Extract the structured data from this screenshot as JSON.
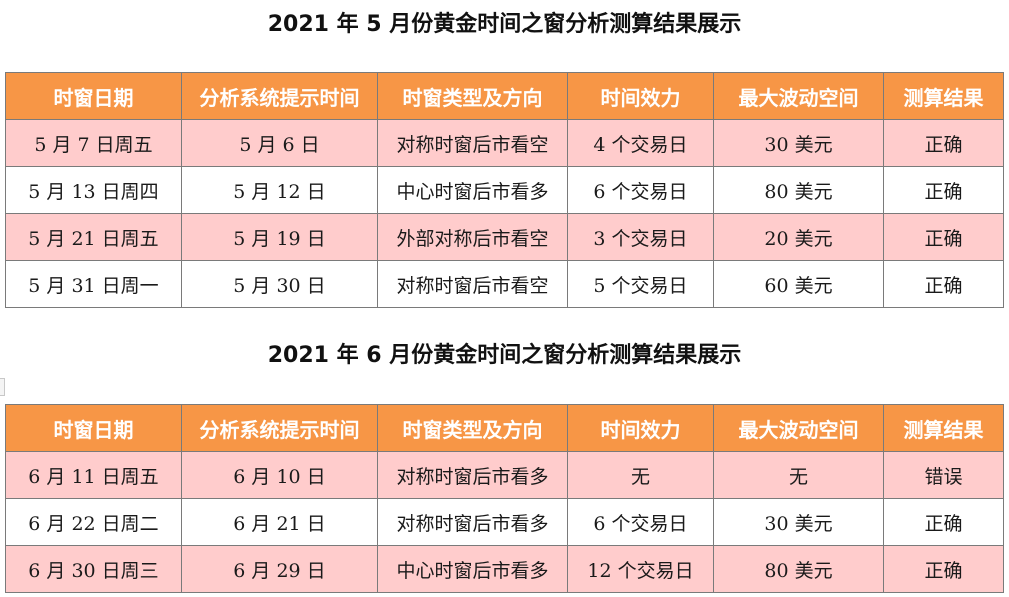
{
  "headers": [
    "时窗日期",
    "分析系统提示时间",
    "时窗类型及方向",
    "时间效力",
    "最大波动空间",
    "测算结果"
  ],
  "tables": [
    {
      "title": "2021 年 5 月份黄金时间之窗分析测算结果展示",
      "rows": [
        [
          "5 月 7 日周五",
          "5 月 6 日",
          "对称时窗后市看空",
          "4 个交易日",
          "30 美元",
          "正确"
        ],
        [
          "5 月 13 日周四",
          "5 月 12 日",
          "中心时窗后市看多",
          "6 个交易日",
          "80 美元",
          "正确"
        ],
        [
          "5 月 21 日周五",
          "5 月 19 日",
          "外部对称后市看空",
          "3 个交易日",
          "20 美元",
          "正确"
        ],
        [
          "5 月 31 日周一",
          "5 月 30 日",
          "对称时窗后市看空",
          "5 个交易日",
          "60 美元",
          "正确"
        ]
      ]
    },
    {
      "title": "2021 年 6 月份黄金时间之窗分析测算结果展示",
      "rows": [
        [
          "6 月 11 日周五",
          "6 月 10 日",
          "对称时窗后市看多",
          "无",
          "无",
          "错误"
        ],
        [
          "6 月 22 日周二",
          "6 月 21 日",
          "对称时窗后市看多",
          "6 个交易日",
          "30 美元",
          "正确"
        ],
        [
          "6 月 30 日周三",
          "6 月 29 日",
          "中心时窗后市看多",
          "12 个交易日",
          "80 美元",
          "正确"
        ]
      ]
    }
  ],
  "colors": {
    "header_bg": "#f79646",
    "header_text": "#ffffff",
    "row_alt_bg": "#ffcccc",
    "row_bg": "#ffffff",
    "border": "#7a7a7a"
  }
}
